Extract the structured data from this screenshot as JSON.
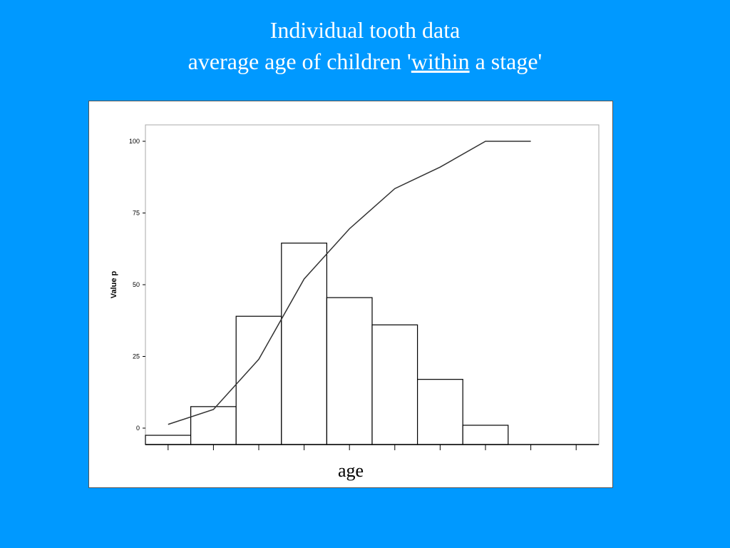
{
  "title": {
    "line1": "Individual tooth data",
    "line2_prefix": "average age of children '",
    "line2_emphasis": "within",
    "line2_suffix": " a stage'"
  },
  "chart_data": {
    "type": "bar",
    "title": "",
    "xlabel": "age",
    "ylabel": "Value p",
    "ylim": [
      0,
      100
    ],
    "yticks": [
      0,
      25,
      50,
      75,
      100
    ],
    "bins": 10,
    "bars": [
      -2.5,
      7.5,
      39,
      64.5,
      45.5,
      36,
      17,
      1,
      null,
      null
    ],
    "line": [
      1.3,
      6.5,
      24,
      52,
      69.5,
      83.5,
      91,
      100,
      100
    ],
    "grid": false,
    "legend": "none",
    "colors": {
      "bar_fill": "#ffffff",
      "bar_stroke": "#000000",
      "line": "#333333",
      "frame": "#aaaaaa"
    }
  }
}
